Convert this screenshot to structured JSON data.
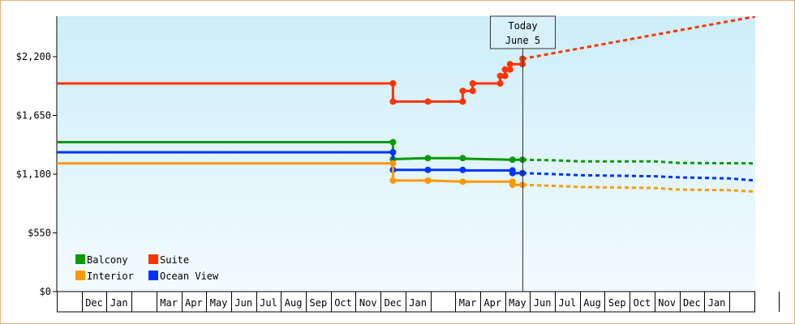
{
  "chart_data": {
    "type": "line",
    "title": "",
    "xlabel": "",
    "ylabel": "",
    "ylim": [
      0,
      2200
    ],
    "yticks": [
      {
        "value": 0,
        "label": "$0"
      },
      {
        "value": 550,
        "label": "$550"
      },
      {
        "value": 1100,
        "label": "$1,100"
      },
      {
        "value": 1650,
        "label": "$1,650"
      },
      {
        "value": 2200,
        "label": "$2,200"
      }
    ],
    "x_axis": {
      "unit": "month_index",
      "range": [
        0,
        28
      ],
      "slots": [
        "",
        "Dec",
        "Jan",
        "",
        "Mar",
        "Apr",
        "May",
        "Jun",
        "Jul",
        "Aug",
        "Sep",
        "Oct",
        "Nov",
        "Dec",
        "Jan",
        "",
        "Mar",
        "Apr",
        "May",
        "Jun",
        "Jul",
        "Aug",
        "Sep",
        "Oct",
        "Nov",
        "Dec",
        "Jan",
        "",
        ""
      ]
    },
    "today": {
      "label_line1": "Today",
      "label_line2": "June 5",
      "x": 18.7
    },
    "legend": {
      "placement": "bottom-left"
    },
    "background": {
      "top": "#cdeef9",
      "bottom": "#f3fbfe"
    },
    "series": [
      {
        "name": "Suite",
        "color": "#ff3300",
        "history": [
          [
            0,
            1950
          ],
          [
            13.5,
            1950
          ],
          [
            13.5,
            1780
          ],
          [
            14.9,
            1780
          ],
          [
            16.3,
            1780
          ],
          [
            16.3,
            1880
          ],
          [
            16.7,
            1880
          ],
          [
            16.7,
            1950
          ],
          [
            17.8,
            1950
          ],
          [
            17.8,
            2020
          ],
          [
            18.0,
            2020
          ],
          [
            18.0,
            2080
          ],
          [
            18.2,
            2080
          ],
          [
            18.2,
            2130
          ],
          [
            18.7,
            2130
          ],
          [
            18.7,
            2180
          ]
        ],
        "markers": [
          [
            13.5,
            1950
          ],
          [
            13.5,
            1780
          ],
          [
            14.9,
            1780
          ],
          [
            16.3,
            1780
          ],
          [
            16.3,
            1880
          ],
          [
            16.7,
            1880
          ],
          [
            16.7,
            1950
          ],
          [
            17.8,
            1950
          ],
          [
            17.8,
            2020
          ],
          [
            18.0,
            2020
          ],
          [
            18.0,
            2080
          ],
          [
            18.2,
            2080
          ],
          [
            18.2,
            2130
          ],
          [
            18.7,
            2130
          ],
          [
            18.7,
            2180
          ]
        ],
        "forecast": [
          [
            18.7,
            2180
          ],
          [
            28.6,
            2600
          ]
        ]
      },
      {
        "name": "Balcony",
        "color": "#0a9a0a",
        "history": [
          [
            0,
            1400
          ],
          [
            13.5,
            1400
          ],
          [
            13.5,
            1240
          ],
          [
            14.9,
            1250
          ],
          [
            16.3,
            1250
          ],
          [
            16.3,
            1245
          ],
          [
            18.3,
            1235
          ],
          [
            18.7,
            1235
          ]
        ],
        "markers": [
          [
            13.5,
            1400
          ],
          [
            13.5,
            1240
          ],
          [
            14.9,
            1250
          ],
          [
            16.3,
            1250
          ],
          [
            18.3,
            1235
          ],
          [
            18.7,
            1235
          ]
        ],
        "forecast": [
          [
            18.7,
            1235
          ],
          [
            20.0,
            1230
          ],
          [
            21.0,
            1220
          ],
          [
            24.0,
            1220
          ],
          [
            25.0,
            1205
          ],
          [
            28.6,
            1200
          ]
        ]
      },
      {
        "name": "Ocean View",
        "color": "#0033ff",
        "history": [
          [
            0,
            1305
          ],
          [
            13.5,
            1305
          ],
          [
            13.5,
            1140
          ],
          [
            14.9,
            1140
          ],
          [
            16.3,
            1140
          ],
          [
            16.3,
            1135
          ],
          [
            18.3,
            1135
          ],
          [
            18.3,
            1110
          ],
          [
            18.7,
            1110
          ]
        ],
        "markers": [
          [
            13.5,
            1305
          ],
          [
            13.5,
            1140
          ],
          [
            14.9,
            1140
          ],
          [
            16.3,
            1140
          ],
          [
            18.3,
            1135
          ],
          [
            18.3,
            1110
          ],
          [
            18.7,
            1110
          ]
        ],
        "forecast": [
          [
            18.7,
            1110
          ],
          [
            20.0,
            1100
          ],
          [
            21.0,
            1090
          ],
          [
            24.0,
            1080
          ],
          [
            25.0,
            1070
          ],
          [
            27.0,
            1060
          ],
          [
            28.6,
            1030
          ]
        ]
      },
      {
        "name": "Interior",
        "color": "#ff9900",
        "history": [
          [
            0,
            1200
          ],
          [
            13.5,
            1200
          ],
          [
            13.5,
            1040
          ],
          [
            14.9,
            1040
          ],
          [
            16.3,
            1030
          ],
          [
            18.3,
            1030
          ],
          [
            18.3,
            1000
          ],
          [
            18.7,
            1000
          ]
        ],
        "markers": [
          [
            13.5,
            1200
          ],
          [
            13.5,
            1040
          ],
          [
            14.9,
            1040
          ],
          [
            16.3,
            1030
          ],
          [
            18.3,
            1030
          ],
          [
            18.3,
            1000
          ],
          [
            18.7,
            1000
          ]
        ],
        "forecast": [
          [
            18.7,
            1000
          ],
          [
            20.0,
            990
          ],
          [
            21.0,
            980
          ],
          [
            24.0,
            970
          ],
          [
            25.0,
            955
          ],
          [
            27.0,
            950
          ],
          [
            28.6,
            930
          ]
        ]
      }
    ],
    "legend_entries": [
      {
        "name": "Balcony",
        "color": "#0a9a0a"
      },
      {
        "name": "Suite",
        "color": "#ff3300"
      },
      {
        "name": "Interior",
        "color": "#ff9900"
      },
      {
        "name": "Ocean View",
        "color": "#0033ff"
      }
    ]
  }
}
